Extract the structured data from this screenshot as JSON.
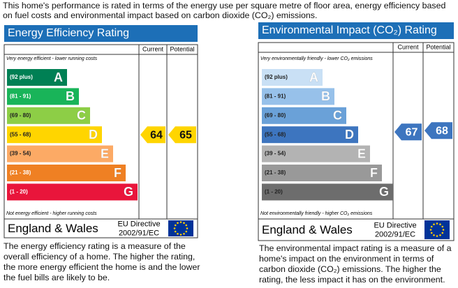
{
  "intro": "This home's performance is rated in terms of the energy use per square metre of floor area, energy efficiency based on fuel costs and environmental impact based on carbon dioxide (CO₂) emissions.",
  "panels": [
    {
      "title": "Energy Efficiency Rating",
      "header_current": "Current",
      "header_potential": "Potential",
      "top_note": "Very energy efficient - lower running costs",
      "bottom_note": "Not energy efficient - higher running costs",
      "bands": [
        {
          "range": "(92 plus)",
          "letter": "A",
          "color": "#008054"
        },
        {
          "range": "(81 - 91)",
          "letter": "B",
          "color": "#19b459"
        },
        {
          "range": "(69 - 80)",
          "letter": "C",
          "color": "#8dce46"
        },
        {
          "range": "(55 - 68)",
          "letter": "D",
          "color": "#ffd500"
        },
        {
          "range": "(39 - 54)",
          "letter": "E",
          "color": "#fcaa65"
        },
        {
          "range": "(21 - 38)",
          "letter": "F",
          "color": "#ef8023"
        },
        {
          "range": "(1 - 20)",
          "letter": "G",
          "color": "#e9153b"
        }
      ],
      "current": 64,
      "potential": 65,
      "region": "England & Wales",
      "directive_line1": "EU Directive",
      "directive_line2": "2002/91/EC",
      "description": "The energy efficiency rating is a measure of the overall efficiency of a home. The higher the rating, the more energy efficient the home is and the lower the fuel bills are likely to be."
    },
    {
      "title": "Environmental Impact (CO₂) Rating",
      "header_current": "Current",
      "header_potential": "Potential",
      "top_note": "Very environmentally friendly - lower CO₂ emissions",
      "bottom_note": "Not environmentally friendly - higher CO₂ emissions",
      "bands": [
        {
          "range": "(92 plus)",
          "letter": "A",
          "color": "#c9e0f5"
        },
        {
          "range": "(81 - 91)",
          "letter": "B",
          "color": "#97c1ea"
        },
        {
          "range": "(69 - 80)",
          "letter": "C",
          "color": "#6aa1d8"
        },
        {
          "range": "(55 - 68)",
          "letter": "D",
          "color": "#3d75bf"
        },
        {
          "range": "(39 - 54)",
          "letter": "E",
          "color": "#b3b3b3"
        },
        {
          "range": "(21 - 38)",
          "letter": "F",
          "color": "#999999"
        },
        {
          "range": "(1 - 20)",
          "letter": "G",
          "color": "#6d6d6d"
        }
      ],
      "current": 67,
      "potential": 68,
      "region": "England & Wales",
      "directive_line1": "EU Directive",
      "directive_line2": "2002/91/EC",
      "description": "The environmental impact rating is a measure of a home's impact on the environment in terms of carbon dioxide (CO₂) emissions. The higher the rating, the less impact it has on the environment."
    }
  ]
}
